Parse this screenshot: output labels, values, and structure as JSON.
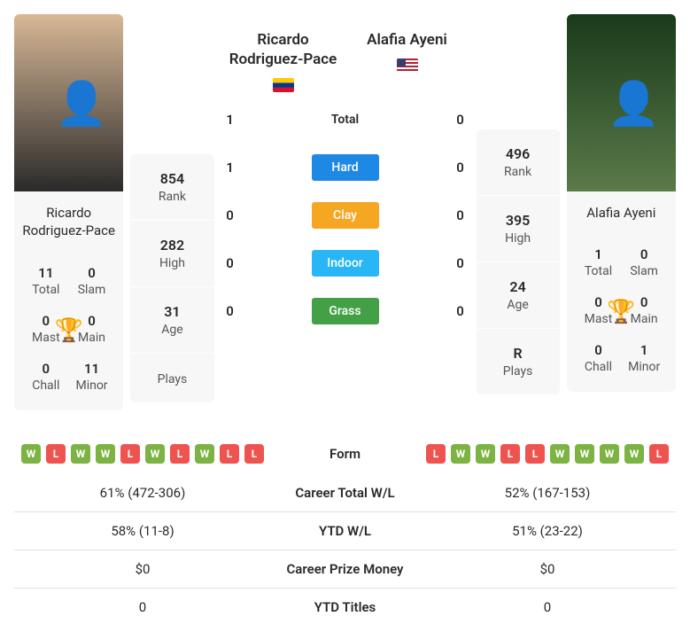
{
  "player1": {
    "name": "Ricardo Rodriguez-Pace",
    "short_name": "Ricardo Rodriguez-Pace",
    "flag": "ve",
    "titles": {
      "total": {
        "value": "11",
        "label": "Total"
      },
      "slam": {
        "value": "0",
        "label": "Slam"
      },
      "mast": {
        "value": "0",
        "label": "Mast"
      },
      "main": {
        "value": "0",
        "label": "Main"
      },
      "chall": {
        "value": "0",
        "label": "Chall"
      },
      "minor": {
        "value": "11",
        "label": "Minor"
      }
    },
    "trophy_color": "#555555",
    "stats": {
      "rank": {
        "value": "854",
        "label": "Rank"
      },
      "high": {
        "value": "282",
        "label": "High"
      },
      "age": {
        "value": "31",
        "label": "Age"
      },
      "plays": {
        "value": "",
        "label": "Plays"
      }
    }
  },
  "player2": {
    "name": "Alafia Ayeni",
    "short_name": "Alafia Ayeni",
    "flag": "us",
    "titles": {
      "total": {
        "value": "1",
        "label": "Total"
      },
      "slam": {
        "value": "0",
        "label": "Slam"
      },
      "mast": {
        "value": "0",
        "label": "Mast"
      },
      "main": {
        "value": "0",
        "label": "Main"
      },
      "chall": {
        "value": "0",
        "label": "Chall"
      },
      "minor": {
        "value": "1",
        "label": "Minor"
      }
    },
    "trophy_color": "#1976d2",
    "stats": {
      "rank": {
        "value": "496",
        "label": "Rank"
      },
      "high": {
        "value": "395",
        "label": "High"
      },
      "age": {
        "value": "24",
        "label": "Age"
      },
      "plays": {
        "value": "R",
        "label": "Plays"
      }
    }
  },
  "h2h": {
    "total": {
      "p1": "1",
      "label": "Total",
      "p2": "0"
    },
    "surfaces": [
      {
        "p1": "1",
        "label": "Hard",
        "color": "#1e88e5",
        "p2": "0"
      },
      {
        "p1": "0",
        "label": "Clay",
        "color": "#f5a623",
        "p2": "0"
      },
      {
        "p1": "0",
        "label": "Indoor",
        "color": "#29b6f6",
        "p2": "0"
      },
      {
        "p1": "0",
        "label": "Grass",
        "color": "#43a047",
        "p2": "0"
      }
    ]
  },
  "compare": {
    "form": {
      "label": "Form",
      "p1": [
        "W",
        "L",
        "W",
        "W",
        "L",
        "W",
        "L",
        "W",
        "L",
        "L"
      ],
      "p2": [
        "L",
        "W",
        "W",
        "L",
        "L",
        "W",
        "W",
        "W",
        "W",
        "L"
      ],
      "win_color": "#7cb342",
      "loss_color": "#ef5350"
    },
    "rows": [
      {
        "p1": "61% (472-306)",
        "label": "Career Total W/L",
        "p2": "52% (167-153)"
      },
      {
        "p1": "58% (11-8)",
        "label": "YTD W/L",
        "p2": "51% (23-22)"
      },
      {
        "p1": "$0",
        "label": "Career Prize Money",
        "p2": "$0"
      },
      {
        "p1": "0",
        "label": "YTD Titles",
        "p2": "0"
      }
    ]
  },
  "style": {
    "background": "#ffffff",
    "card_bg": "#f7f7f7",
    "text_color": "#2a2a2a",
    "muted_color": "#555555",
    "border_color": "#e0e0e0"
  }
}
